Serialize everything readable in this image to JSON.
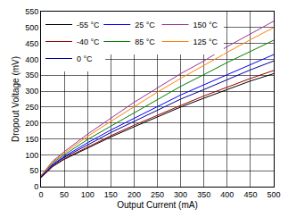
{
  "chart_data": {
    "type": "line",
    "x_label": "Output Current (mA)",
    "y_label": "Dropout Voltage (mV)",
    "x": [
      0,
      25,
      50,
      100,
      150,
      200,
      250,
      300,
      350,
      400,
      450,
      500
    ],
    "series": [
      {
        "name": "-55 °C",
        "color": "#000000",
        "values": [
          28,
          63,
          86,
          122,
          156,
          188,
          220,
          250,
          278,
          305,
          332,
          355
        ]
      },
      {
        "name": "-40 °C",
        "color": "#990000",
        "values": [
          28,
          65,
          88,
          125,
          160,
          193,
          225,
          255,
          285,
          313,
          340,
          365
        ]
      },
      {
        "name": "0 °C",
        "color": "#000099",
        "values": [
          30,
          68,
          92,
          132,
          170,
          205,
          240,
          275,
          305,
          337,
          367,
          395
        ]
      },
      {
        "name": "25 °C",
        "color": "#0000ff",
        "values": [
          30,
          70,
          95,
          138,
          178,
          215,
          252,
          288,
          320,
          352,
          385,
          415
        ]
      },
      {
        "name": "85 °C",
        "color": "#008000",
        "values": [
          33,
          75,
          100,
          148,
          190,
          232,
          275,
          315,
          352,
          390,
          425,
          460
        ]
      },
      {
        "name": "150 °C",
        "color": "#993399",
        "values": [
          35,
          80,
          110,
          165,
          215,
          265,
          310,
          355,
          395,
          440,
          480,
          520
        ]
      },
      {
        "name": "125 °C",
        "color": "#ff8000",
        "values": [
          35,
          78,
          105,
          158,
          205,
          252,
          297,
          340,
          382,
          422,
          462,
          500
        ]
      }
    ],
    "xlim": [
      0,
      500
    ],
    "xticks": [
      0,
      50,
      100,
      150,
      200,
      250,
      300,
      350,
      400,
      450,
      500
    ],
    "ylim": [
      0,
      550
    ],
    "yticks": [
      0,
      50,
      100,
      150,
      200,
      250,
      300,
      350,
      400,
      450,
      500,
      550
    ],
    "grid": true,
    "legend": "top left"
  }
}
